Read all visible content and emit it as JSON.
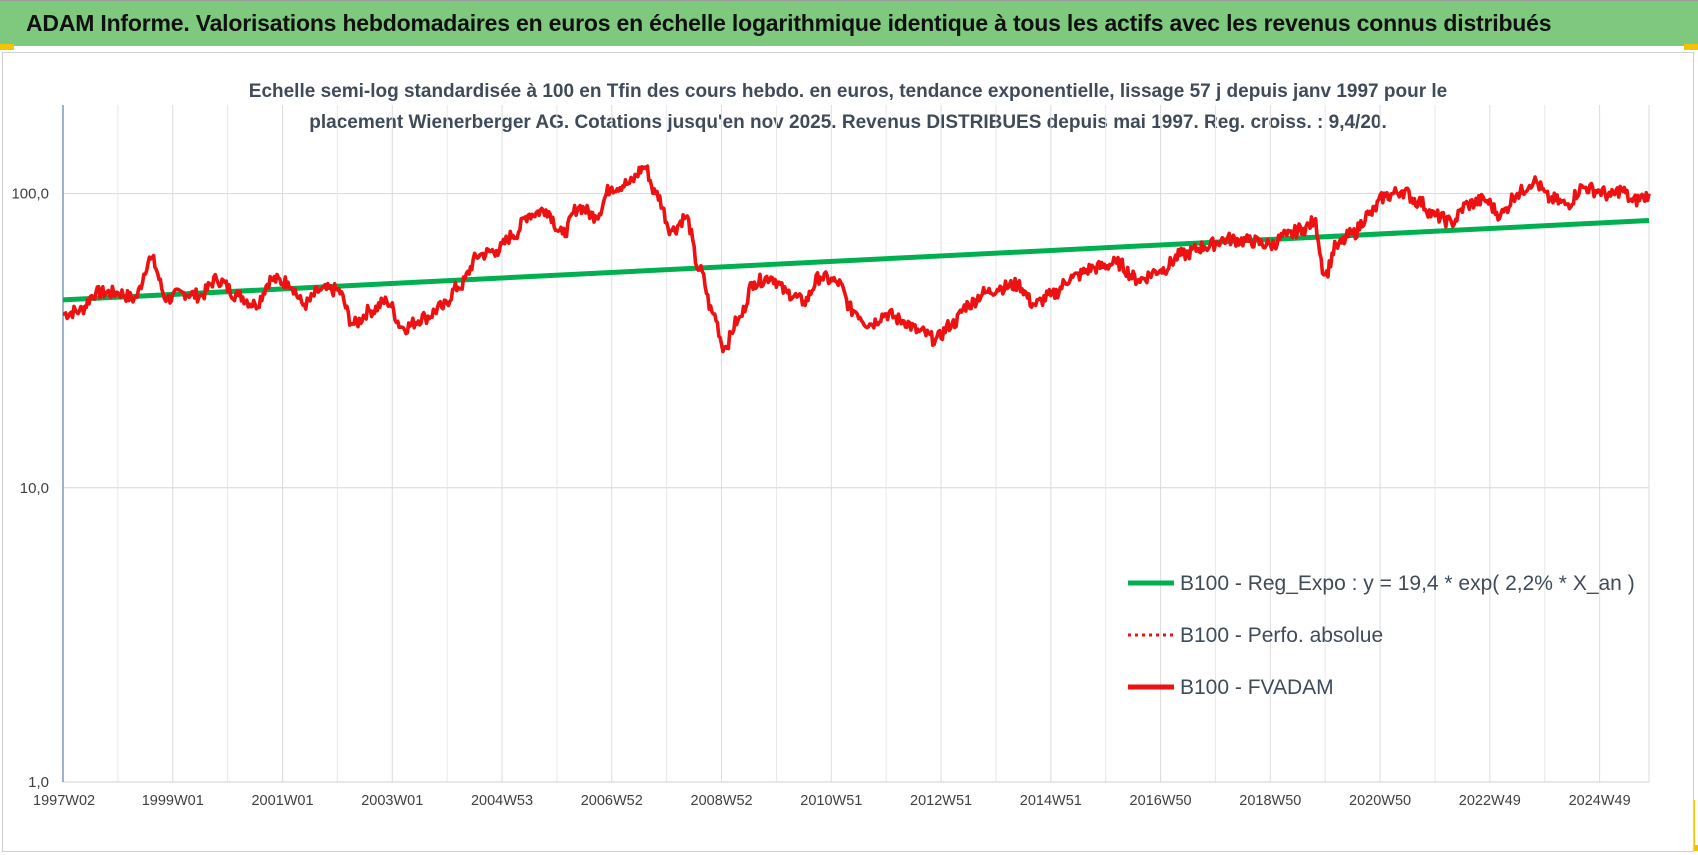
{
  "header": {
    "title": "ADAM Informe. Valorisations hebdomadaires en euros en échelle logarithmique identique à tous les actifs avec les revenus connus distribués"
  },
  "colors": {
    "banner": "#7fc97f",
    "regression": "#00b050",
    "fvadam": "#ee1111",
    "perfo": "#ee1111",
    "accent_corner": "#f5c400"
  },
  "chart_data": {
    "type": "line",
    "subtitle_lines": [
      "Echelle semi-log standardisée à 100 en Tfin des cours hebdo. en euros, tendance exponentielle, lissage 57 j depuis janv 1997 pour le",
      "placement Wienerberger AG. Cotations jusqu'en nov 2025. Revenus DISTRIBUES depuis mai 1997. Reg. croiss. : 9,4/20."
    ],
    "y_scale": "log",
    "ylim": [
      1,
      200
    ],
    "y_ticks": [
      {
        "value": 1,
        "label": "1,0"
      },
      {
        "value": 10,
        "label": "10,0"
      },
      {
        "value": 100,
        "label": "100,0"
      }
    ],
    "x_range": [
      1997.0,
      2025.9
    ],
    "x_ticks": [
      {
        "t": 1997.0,
        "label": "1997W02"
      },
      {
        "t": 1999.0,
        "label": "1999W01"
      },
      {
        "t": 2001.0,
        "label": "2001W01"
      },
      {
        "t": 2003.0,
        "label": "2003W01"
      },
      {
        "t": 2005.0,
        "label": "2004W53"
      },
      {
        "t": 2007.0,
        "label": "2006W52"
      },
      {
        "t": 2009.0,
        "label": "2008W52"
      },
      {
        "t": 2011.0,
        "label": "2010W51"
      },
      {
        "t": 2013.0,
        "label": "2012W51"
      },
      {
        "t": 2015.0,
        "label": "2014W51"
      },
      {
        "t": 2017.0,
        "label": "2016W50"
      },
      {
        "t": 2019.0,
        "label": "2018W50"
      },
      {
        "t": 2021.0,
        "label": "2020W50"
      },
      {
        "t": 2023.0,
        "label": "2022W49"
      },
      {
        "t": 2025.0,
        "label": "2024W49"
      }
    ],
    "legend": {
      "placement": "right-middle",
      "entries": [
        {
          "label": "B100 - Reg_Expo : y = 19,4 * exp( 2,2% *  X_an )",
          "style": "solid",
          "color": "#00b050"
        },
        {
          "label": "B100 - Perfo. absolue",
          "style": "dotted",
          "color": "#ee1111"
        },
        {
          "label": "B100 - FVADAM",
          "style": "solid",
          "color": "#ee1111"
        }
      ]
    },
    "series": [
      {
        "name": "B100 - Reg_Expo : y = 19,4 * exp( 2,2% *  X_an )",
        "color": "#00b050",
        "x": [
          1997.0,
          2025.9
        ],
        "values": [
          43.5,
          81.0
        ]
      },
      {
        "name": "B100 - FVADAM",
        "color": "#ee1111",
        "x": [
          1997.0,
          1997.3,
          1997.6,
          1998.0,
          1998.3,
          1998.6,
          1998.9,
          1999.2,
          1999.5,
          1999.8,
          2000.2,
          2000.5,
          2000.8,
          2001.1,
          2001.4,
          2001.7,
          2002.0,
          2002.3,
          2002.6,
          2002.9,
          2003.2,
          2003.6,
          2003.9,
          2004.2,
          2004.6,
          2004.9,
          2005.2,
          2005.5,
          2005.8,
          2006.1,
          2006.4,
          2006.7,
          2007.0,
          2007.3,
          2007.6,
          2007.8,
          2008.1,
          2008.35,
          2008.6,
          2008.85,
          2009.05,
          2009.3,
          2009.6,
          2009.9,
          2010.2,
          2010.5,
          2010.8,
          2011.1,
          2011.4,
          2011.7,
          2012.0,
          2012.3,
          2012.6,
          2012.9,
          2013.2,
          2013.5,
          2013.8,
          2014.1,
          2014.4,
          2014.7,
          2015.0,
          2015.4,
          2015.8,
          2016.2,
          2016.6,
          2017.0,
          2017.4,
          2017.8,
          2018.2,
          2018.6,
          2019.0,
          2019.3,
          2019.6,
          2019.8,
          2020.0,
          2020.2,
          2020.5,
          2020.8,
          2021.1,
          2021.4,
          2021.7,
          2022.0,
          2022.3,
          2022.6,
          2022.9,
          2023.2,
          2023.5,
          2023.8,
          2024.1,
          2024.4,
          2024.7,
          2025.0,
          2025.2,
          2025.4,
          2025.6,
          2025.8,
          2025.9
        ],
        "values": [
          39,
          40,
          46,
          46,
          44,
          60,
          44,
          46,
          45,
          51,
          45,
          42,
          51,
          50,
          42,
          47,
          47,
          36,
          40,
          43,
          35,
          38,
          41,
          48,
          62,
          64,
          72,
          85,
          88,
          73,
          90,
          84,
          105,
          108,
          123,
          100,
          75,
          83,
          55,
          39,
          30,
          37,
          50,
          52,
          46,
          43,
          52,
          50,
          40,
          36,
          39,
          37,
          34,
          32,
          36,
          42,
          46,
          48,
          49,
          42,
          45,
          52,
          56,
          58,
          51,
          55,
          62,
          66,
          70,
          69,
          67,
          72,
          76,
          80,
          53,
          66,
          73,
          85,
          98,
          102,
          94,
          84,
          80,
          92,
          95,
          85,
          100,
          110,
          96,
          92,
          105,
          102,
          98,
          103,
          94,
          97,
          100
        ]
      }
    ]
  }
}
